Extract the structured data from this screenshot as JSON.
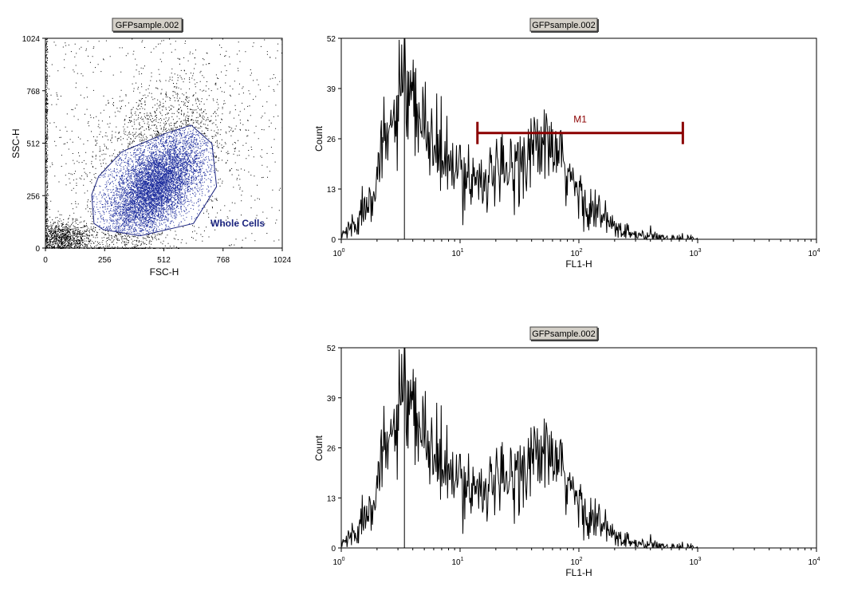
{
  "chart_data": [
    {
      "type": "scatter",
      "title": "GFPsample.002",
      "xlabel": "FSC-H",
      "ylabel": "SSC-H",
      "xlim": [
        0,
        1024
      ],
      "ylim": [
        0,
        1024
      ],
      "x_ticks": [
        "0",
        "256",
        "512",
        "768",
        "1024"
      ],
      "y_ticks": [
        "0",
        "256",
        "512",
        "768",
        "1024"
      ],
      "gate": {
        "name": "Whole Cells",
        "polygon": [
          [
            210,
            120
          ],
          [
            250,
            90
          ],
          [
            410,
            60
          ],
          [
            640,
            120
          ],
          [
            740,
            300
          ],
          [
            720,
            510
          ],
          [
            630,
            600
          ],
          [
            520,
            560
          ],
          [
            330,
            470
          ],
          [
            230,
            350
          ],
          [
            200,
            260
          ]
        ]
      },
      "populations": [
        {
          "name": "debris",
          "center": [
            80,
            50
          ],
          "spread": [
            60,
            40
          ]
        },
        {
          "name": "cells",
          "center": [
            470,
            290
          ],
          "spread": [
            95,
            110
          ]
        }
      ]
    },
    {
      "type": "histogram",
      "title": "GFPsample.002",
      "xlabel": "FL1-H",
      "ylabel": "Count",
      "xscale": "log",
      "xlim": [
        1,
        10000
      ],
      "ylim": [
        0,
        52
      ],
      "y_ticks": [
        "0",
        "13",
        "26",
        "39",
        "52"
      ],
      "x_ticks": [
        {
          "base": "10",
          "exp": "0"
        },
        {
          "base": "10",
          "exp": "1"
        },
        {
          "base": "10",
          "exp": "2"
        },
        {
          "base": "10",
          "exp": "3"
        },
        {
          "base": "10",
          "exp": "4"
        }
      ],
      "envelope": [
        [
          1.0,
          1
        ],
        [
          1.3,
          4
        ],
        [
          1.6,
          9
        ],
        [
          2.0,
          17
        ],
        [
          2.5,
          27
        ],
        [
          3.0,
          34
        ],
        [
          3.5,
          36
        ],
        [
          4.2,
          32
        ],
        [
          5.0,
          29
        ],
        [
          6.0,
          24
        ],
        [
          7.5,
          20
        ],
        [
          9.0,
          17
        ],
        [
          11,
          17
        ],
        [
          14,
          16
        ],
        [
          18,
          16
        ],
        [
          22,
          16
        ],
        [
          28,
          19
        ],
        [
          35,
          22
        ],
        [
          45,
          24
        ],
        [
          55,
          24
        ],
        [
          70,
          20
        ],
        [
          90,
          14
        ],
        [
          110,
          10
        ],
        [
          140,
          7
        ],
        [
          180,
          4
        ],
        [
          230,
          2
        ],
        [
          300,
          1
        ],
        [
          450,
          0.5
        ],
        [
          800,
          0.2
        ],
        [
          1000,
          0
        ]
      ],
      "spike": {
        "x": 3.4,
        "y": 52
      },
      "marker": {
        "label": "M1",
        "x_start": 14,
        "x_end": 750,
        "y": 27.5,
        "color": "#8b0000"
      }
    },
    {
      "type": "histogram",
      "title": "GFPsample.002",
      "xlabel": "FL1-H",
      "ylabel": "Count",
      "xscale": "log",
      "xlim": [
        1,
        10000
      ],
      "ylim": [
        0,
        52
      ],
      "y_ticks": [
        "0",
        "13",
        "26",
        "39",
        "52"
      ],
      "x_ticks": [
        {
          "base": "10",
          "exp": "0"
        },
        {
          "base": "10",
          "exp": "1"
        },
        {
          "base": "10",
          "exp": "2"
        },
        {
          "base": "10",
          "exp": "3"
        },
        {
          "base": "10",
          "exp": "4"
        }
      ],
      "envelope": [
        [
          1.0,
          1
        ],
        [
          1.3,
          4
        ],
        [
          1.6,
          9
        ],
        [
          2.0,
          17
        ],
        [
          2.5,
          27
        ],
        [
          3.0,
          34
        ],
        [
          3.5,
          36
        ],
        [
          4.2,
          32
        ],
        [
          5.0,
          29
        ],
        [
          6.0,
          24
        ],
        [
          7.5,
          20
        ],
        [
          9.0,
          17
        ],
        [
          11,
          17
        ],
        [
          14,
          16
        ],
        [
          18,
          16
        ],
        [
          22,
          16
        ],
        [
          28,
          19
        ],
        [
          35,
          22
        ],
        [
          45,
          24
        ],
        [
          55,
          24
        ],
        [
          70,
          20
        ],
        [
          90,
          14
        ],
        [
          110,
          10
        ],
        [
          140,
          7
        ],
        [
          180,
          4
        ],
        [
          230,
          2
        ],
        [
          300,
          1
        ],
        [
          450,
          0.5
        ],
        [
          800,
          0.2
        ],
        [
          1000,
          0
        ]
      ],
      "spike": {
        "x": 3.4,
        "y": 52
      }
    }
  ],
  "colors": {
    "gate": "#1a237e",
    "gated_dots": "#1a2a9c",
    "dots": "#000000",
    "marker": "#8b0000",
    "title_box": "#d4d0c8"
  }
}
